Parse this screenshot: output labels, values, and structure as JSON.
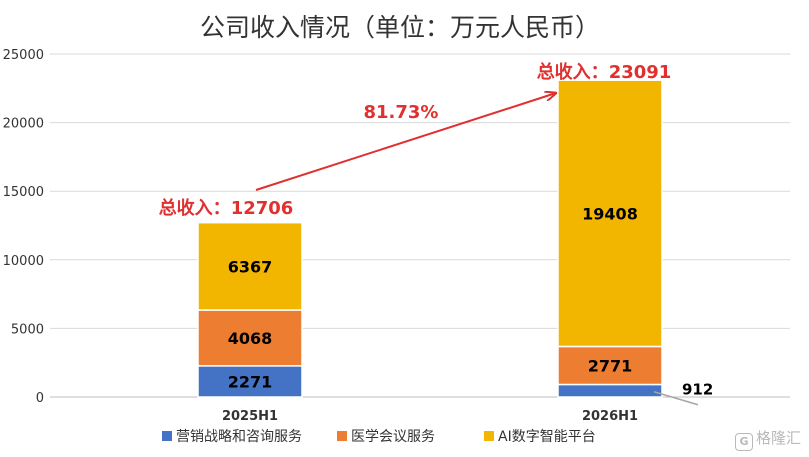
{
  "chart_data": {
    "type": "bar",
    "stacked": true,
    "title": "公司收入情况（单位：万元人民币）",
    "categories": [
      "2025H1",
      "2026H1"
    ],
    "series": [
      {
        "name": "营销战略和咨询服务",
        "color": "#4472C4",
        "values": [
          2271,
          912
        ]
      },
      {
        "name": "医学会议服务",
        "color": "#ED7D31",
        "values": [
          4068,
          2771
        ]
      },
      {
        "name": "AI数字智能平台",
        "color": "#F2B600",
        "values": [
          6367,
          19408
        ]
      }
    ],
    "totals": [
      {
        "label": "总收入：",
        "value": "12706"
      },
      {
        "label": "总收入：",
        "value": "23091"
      }
    ],
    "growth_label": "81.73%",
    "ylim": [
      0,
      25000
    ],
    "yticks": [
      0,
      5000,
      10000,
      15000,
      20000,
      25000
    ],
    "grid": true,
    "legend": "bottom",
    "annotation_color": "#E03030"
  },
  "watermark": {
    "logo": "G",
    "text": "格隆汇"
  }
}
